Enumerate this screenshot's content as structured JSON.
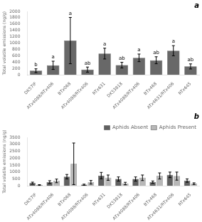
{
  "chart_data": [
    {
      "type": "bar",
      "title": "a",
      "categories": [
        "DK57IF",
        "ATx4088/RTx406",
        "BTx068",
        "ATx4088/RTx406",
        "RTx631",
        "DK53818",
        "ATx4088/RTx406",
        "BTx468",
        "ATx4631/RTx406",
        "RTx645"
      ],
      "ylabel": "Total volatile emissions (ng/g)",
      "ylim": [
        0,
        2000
      ],
      "yticks": [
        0,
        200,
        400,
        600,
        800,
        1000,
        1200,
        1400,
        1600,
        1800,
        2000
      ],
      "grid": false,
      "series": [
        {
          "color": "#686868",
          "values": [
            130,
            300,
            1080,
            165,
            670,
            305,
            535,
            460,
            760,
            265
          ],
          "errors": [
            60,
            130,
            730,
            80,
            170,
            90,
            120,
            110,
            160,
            80
          ]
        }
      ],
      "annotations": [
        "b",
        "a",
        "a",
        "ab",
        "a",
        "ab",
        "a",
        "ab",
        "a",
        "ab"
      ]
    },
    {
      "type": "bar",
      "title": "b",
      "categories": [
        "DK57IF",
        "ATx4088/RTx406",
        "BTx068",
        "ATx4088/RTx406",
        "RTx631",
        "DK53818",
        "ATx4088/RTx406",
        "BTx468",
        "ATx4631/RTx406",
        "RTx645"
      ],
      "ylabel": "Total volatile emissions (ng/g)",
      "ylim": [
        0,
        3500
      ],
      "yticks": [
        0,
        500,
        1000,
        1500,
        2000,
        2500,
        3000,
        3500
      ],
      "grid": false,
      "legend": "upper right",
      "series": [
        {
          "name": "Aphids Absent",
          "color": "#606060",
          "values": [
            195,
            270,
            660,
            80,
            740,
            490,
            490,
            270,
            790,
            380
          ],
          "errors": [
            70,
            100,
            160,
            40,
            230,
            150,
            150,
            80,
            200,
            120
          ]
        },
        {
          "name": "Aphids Present",
          "color": "#b8b8b8",
          "values": [
            55,
            355,
            1590,
            255,
            590,
            165,
            580,
            710,
            700,
            155
          ],
          "errors": [
            30,
            130,
            1500,
            130,
            190,
            90,
            200,
            220,
            290,
            60
          ]
        }
      ]
    }
  ]
}
